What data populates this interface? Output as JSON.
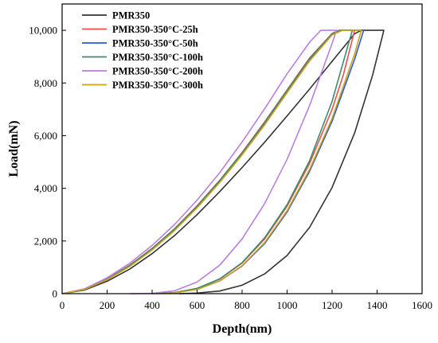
{
  "chart_data": {
    "type": "line",
    "xlabel": "Depth(nm)",
    "ylabel": "Load(mN)",
    "xlim": [
      0,
      1600
    ],
    "ylim": [
      0,
      11000
    ],
    "x_ticks": [
      "0",
      "200",
      "400",
      "600",
      "800",
      "1000",
      "1200",
      "1400",
      "1600"
    ],
    "y_ticks": [
      "0",
      "2,000",
      "4,000",
      "6,000",
      "8,000",
      "10,000"
    ],
    "grid": false,
    "legend_position": "top-left",
    "series": [
      {
        "name": "PMR350",
        "color": "#333333",
        "loading": [
          [
            0,
            0
          ],
          [
            100,
            140
          ],
          [
            200,
            470
          ],
          [
            300,
            930
          ],
          [
            400,
            1520
          ],
          [
            500,
            2210
          ],
          [
            600,
            3000
          ],
          [
            700,
            3870
          ],
          [
            800,
            4790
          ],
          [
            900,
            5750
          ],
          [
            1000,
            6750
          ],
          [
            1100,
            7770
          ],
          [
            1200,
            8820
          ],
          [
            1300,
            9870
          ],
          [
            1330,
            10000
          ]
        ],
        "hold": [
          [
            1330,
            10000
          ],
          [
            1430,
            10000
          ]
        ],
        "unloading": [
          [
            1430,
            10000
          ],
          [
            1380,
            8300
          ],
          [
            1300,
            6100
          ],
          [
            1200,
            4030
          ],
          [
            1100,
            2520
          ],
          [
            1000,
            1450
          ],
          [
            900,
            750
          ],
          [
            800,
            320
          ],
          [
            700,
            100
          ],
          [
            600,
            20
          ],
          [
            520,
            0
          ]
        ]
      },
      {
        "name": "PMR350-350°C-25h",
        "color": "#e8524a",
        "loading": [
          [
            0,
            0
          ],
          [
            100,
            170
          ],
          [
            200,
            560
          ],
          [
            300,
            1080
          ],
          [
            400,
            1720
          ],
          [
            500,
            2470
          ],
          [
            600,
            3340
          ],
          [
            700,
            4300
          ],
          [
            800,
            5360
          ],
          [
            900,
            6520
          ],
          [
            1000,
            7740
          ],
          [
            1100,
            8950
          ],
          [
            1200,
            9880
          ],
          [
            1230,
            10000
          ]
        ],
        "hold": [
          [
            1230,
            10000
          ],
          [
            1300,
            10000
          ]
        ],
        "unloading": [
          [
            1300,
            10000
          ],
          [
            1250,
            8300
          ],
          [
            1200,
            7000
          ],
          [
            1100,
            4950
          ],
          [
            1000,
            3320
          ],
          [
            900,
            2080
          ],
          [
            800,
            1160
          ],
          [
            700,
            550
          ],
          [
            600,
            200
          ],
          [
            500,
            40
          ],
          [
            400,
            0
          ]
        ]
      },
      {
        "name": "PMR350-350°C-50h",
        "color": "#2a5bd7",
        "loading": [
          [
            0,
            0
          ],
          [
            100,
            160
          ],
          [
            200,
            540
          ],
          [
            300,
            1050
          ],
          [
            400,
            1680
          ],
          [
            500,
            2440
          ],
          [
            600,
            3300
          ],
          [
            700,
            4260
          ],
          [
            800,
            5300
          ],
          [
            900,
            6450
          ],
          [
            1000,
            7670
          ],
          [
            1100,
            8880
          ],
          [
            1200,
            9850
          ],
          [
            1240,
            10000
          ]
        ],
        "hold": [
          [
            1240,
            10000
          ],
          [
            1340,
            10000
          ]
        ],
        "unloading": [
          [
            1340,
            10000
          ],
          [
            1300,
            8900
          ],
          [
            1200,
            6550
          ],
          [
            1100,
            4650
          ],
          [
            1000,
            3100
          ],
          [
            900,
            1900
          ],
          [
            800,
            1050
          ],
          [
            700,
            480
          ],
          [
            600,
            170
          ],
          [
            480,
            0
          ]
        ]
      },
      {
        "name": "PMR350-350°C-100h",
        "color": "#3d8a6e",
        "loading": [
          [
            0,
            0
          ],
          [
            100,
            165
          ],
          [
            200,
            550
          ],
          [
            300,
            1070
          ],
          [
            400,
            1710
          ],
          [
            500,
            2460
          ],
          [
            600,
            3320
          ],
          [
            700,
            4290
          ],
          [
            800,
            5340
          ],
          [
            900,
            6490
          ],
          [
            1000,
            7710
          ],
          [
            1100,
            8920
          ],
          [
            1200,
            9870
          ],
          [
            1235,
            10000
          ]
        ],
        "hold": [
          [
            1235,
            10000
          ],
          [
            1290,
            10000
          ]
        ],
        "unloading": [
          [
            1290,
            10000
          ],
          [
            1250,
            8800
          ],
          [
            1200,
            7300
          ],
          [
            1100,
            5050
          ],
          [
            1000,
            3380
          ],
          [
            900,
            2120
          ],
          [
            800,
            1180
          ],
          [
            700,
            560
          ],
          [
            600,
            200
          ],
          [
            500,
            40
          ],
          [
            420,
            0
          ]
        ]
      },
      {
        "name": "PMR350-350°C-200h",
        "color": "#b87fe0",
        "loading": [
          [
            0,
            0
          ],
          [
            100,
            185
          ],
          [
            200,
            600
          ],
          [
            300,
            1150
          ],
          [
            400,
            1830
          ],
          [
            500,
            2630
          ],
          [
            600,
            3550
          ],
          [
            700,
            4590
          ],
          [
            800,
            5760
          ],
          [
            900,
            7020
          ],
          [
            1000,
            8350
          ],
          [
            1100,
            9550
          ],
          [
            1150,
            10000
          ]
        ],
        "hold": [
          [
            1150,
            10000
          ],
          [
            1220,
            10000
          ]
        ],
        "unloading": [
          [
            1220,
            10000
          ],
          [
            1200,
            9500
          ],
          [
            1100,
            7150
          ],
          [
            1000,
            5100
          ],
          [
            900,
            3420
          ],
          [
            800,
            2080
          ],
          [
            700,
            1080
          ],
          [
            600,
            440
          ],
          [
            500,
            110
          ],
          [
            400,
            10
          ],
          [
            300,
            0
          ]
        ]
      },
      {
        "name": "PMR350-350°C-300h",
        "color": "#c9a21a",
        "loading": [
          [
            0,
            0
          ],
          [
            100,
            160
          ],
          [
            200,
            530
          ],
          [
            300,
            1030
          ],
          [
            400,
            1660
          ],
          [
            500,
            2400
          ],
          [
            600,
            3260
          ],
          [
            700,
            4220
          ],
          [
            800,
            5270
          ],
          [
            900,
            6410
          ],
          [
            1000,
            7630
          ],
          [
            1100,
            8840
          ],
          [
            1200,
            9820
          ],
          [
            1245,
            10000
          ]
        ],
        "hold": [
          [
            1245,
            10000
          ],
          [
            1330,
            10000
          ]
        ],
        "unloading": [
          [
            1330,
            10000
          ],
          [
            1300,
            9100
          ],
          [
            1200,
            6650
          ],
          [
            1100,
            4720
          ],
          [
            1000,
            3150
          ],
          [
            900,
            1940
          ],
          [
            800,
            1060
          ],
          [
            700,
            480
          ],
          [
            600,
            160
          ],
          [
            500,
            30
          ],
          [
            450,
            0
          ]
        ]
      }
    ]
  }
}
